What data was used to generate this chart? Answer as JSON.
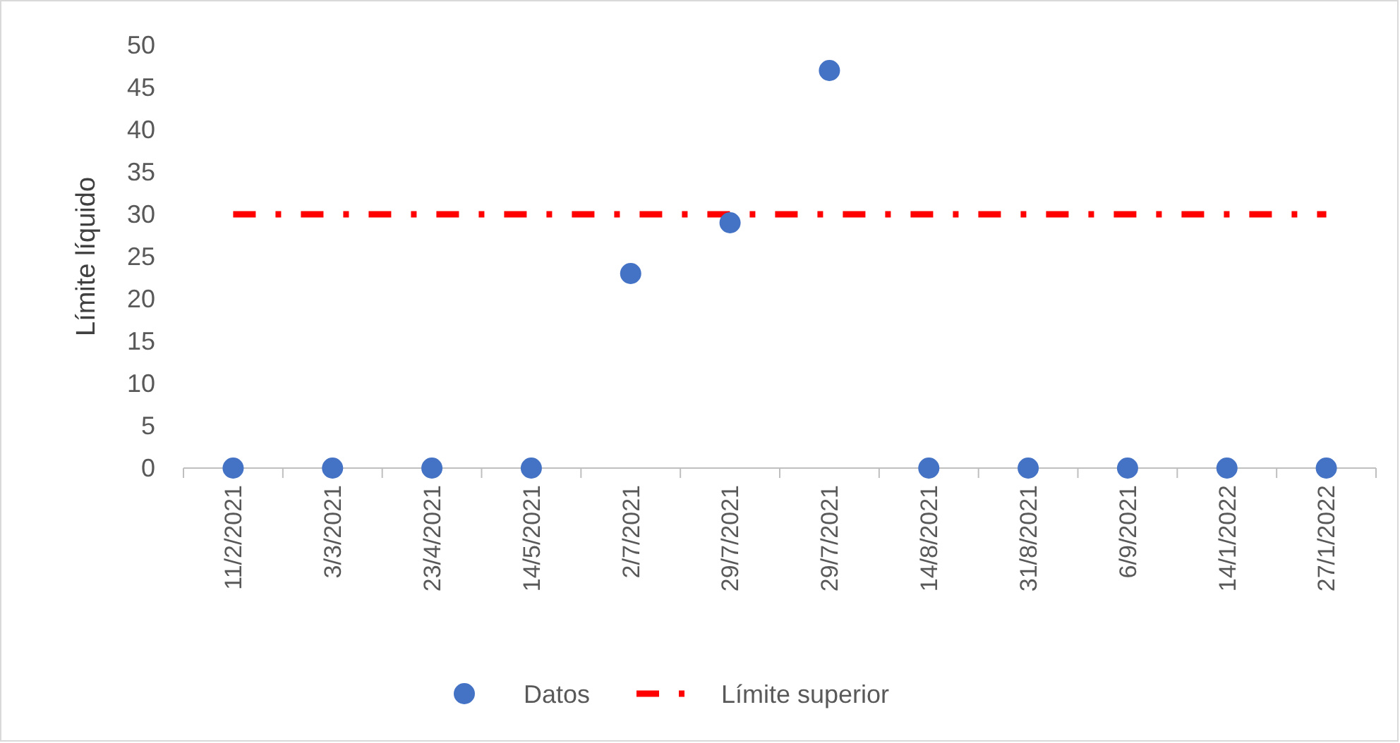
{
  "chart_data": {
    "type": "scatter",
    "ylabel": "Límite líquido",
    "categories": [
      "11/2/2021",
      "3/3/2021",
      "23/4/2021",
      "14/5/2021",
      "2/7/2021",
      "29/7/2021",
      "29/7/2021",
      "14/8/2021",
      "31/8/2021",
      "6/9/2021",
      "14/1/2022",
      "27/1/2022"
    ],
    "series": [
      {
        "name": "Datos",
        "color": "#4472c4",
        "marker": "circle",
        "values": [
          0,
          0,
          0,
          0,
          23,
          29,
          47,
          0,
          0,
          0,
          0,
          0
        ]
      },
      {
        "name": "Límite superior",
        "type": "line",
        "color": "#ff0000",
        "marker": "none",
        "line_style": "dashed",
        "values": [
          30,
          30,
          30,
          30,
          30,
          30,
          30,
          30,
          30,
          30,
          30,
          30
        ]
      }
    ],
    "ylim": [
      0,
      50
    ],
    "yticks": [
      0,
      5,
      10,
      15,
      20,
      25,
      30,
      35,
      40,
      45,
      50
    ],
    "grid": false,
    "legend": "bottom"
  }
}
